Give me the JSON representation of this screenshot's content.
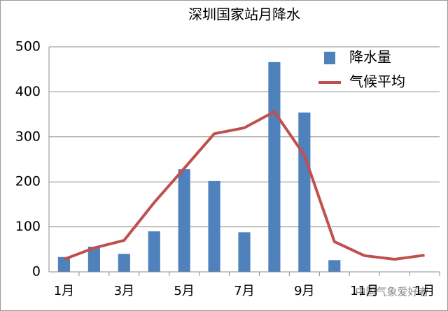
{
  "chart_data": {
    "type": "bar-line",
    "title": "深圳国家站月降水",
    "categories": [
      "1月",
      null,
      "3月",
      null,
      "5月",
      null,
      "7月",
      null,
      "9月",
      null,
      "11月",
      null,
      "1月"
    ],
    "series": [
      {
        "name": "降水量",
        "type": "bar",
        "color": "#4f81bd",
        "values": [
          33,
          56,
          40,
          90,
          228,
          202,
          88,
          466,
          354,
          26,
          null,
          null,
          null
        ]
      },
      {
        "name": "气候平均",
        "type": "line",
        "color": "#c0504d",
        "values": [
          28,
          53,
          70,
          154,
          230,
          307,
          320,
          356,
          259,
          67,
          36,
          28,
          37
        ]
      }
    ],
    "ylim": [
      0,
      500
    ],
    "yticks": [
      0,
      100,
      200,
      300,
      400,
      500
    ],
    "grid": true,
    "legend": "top-right",
    "watermark": "中国气象爱好者"
  }
}
